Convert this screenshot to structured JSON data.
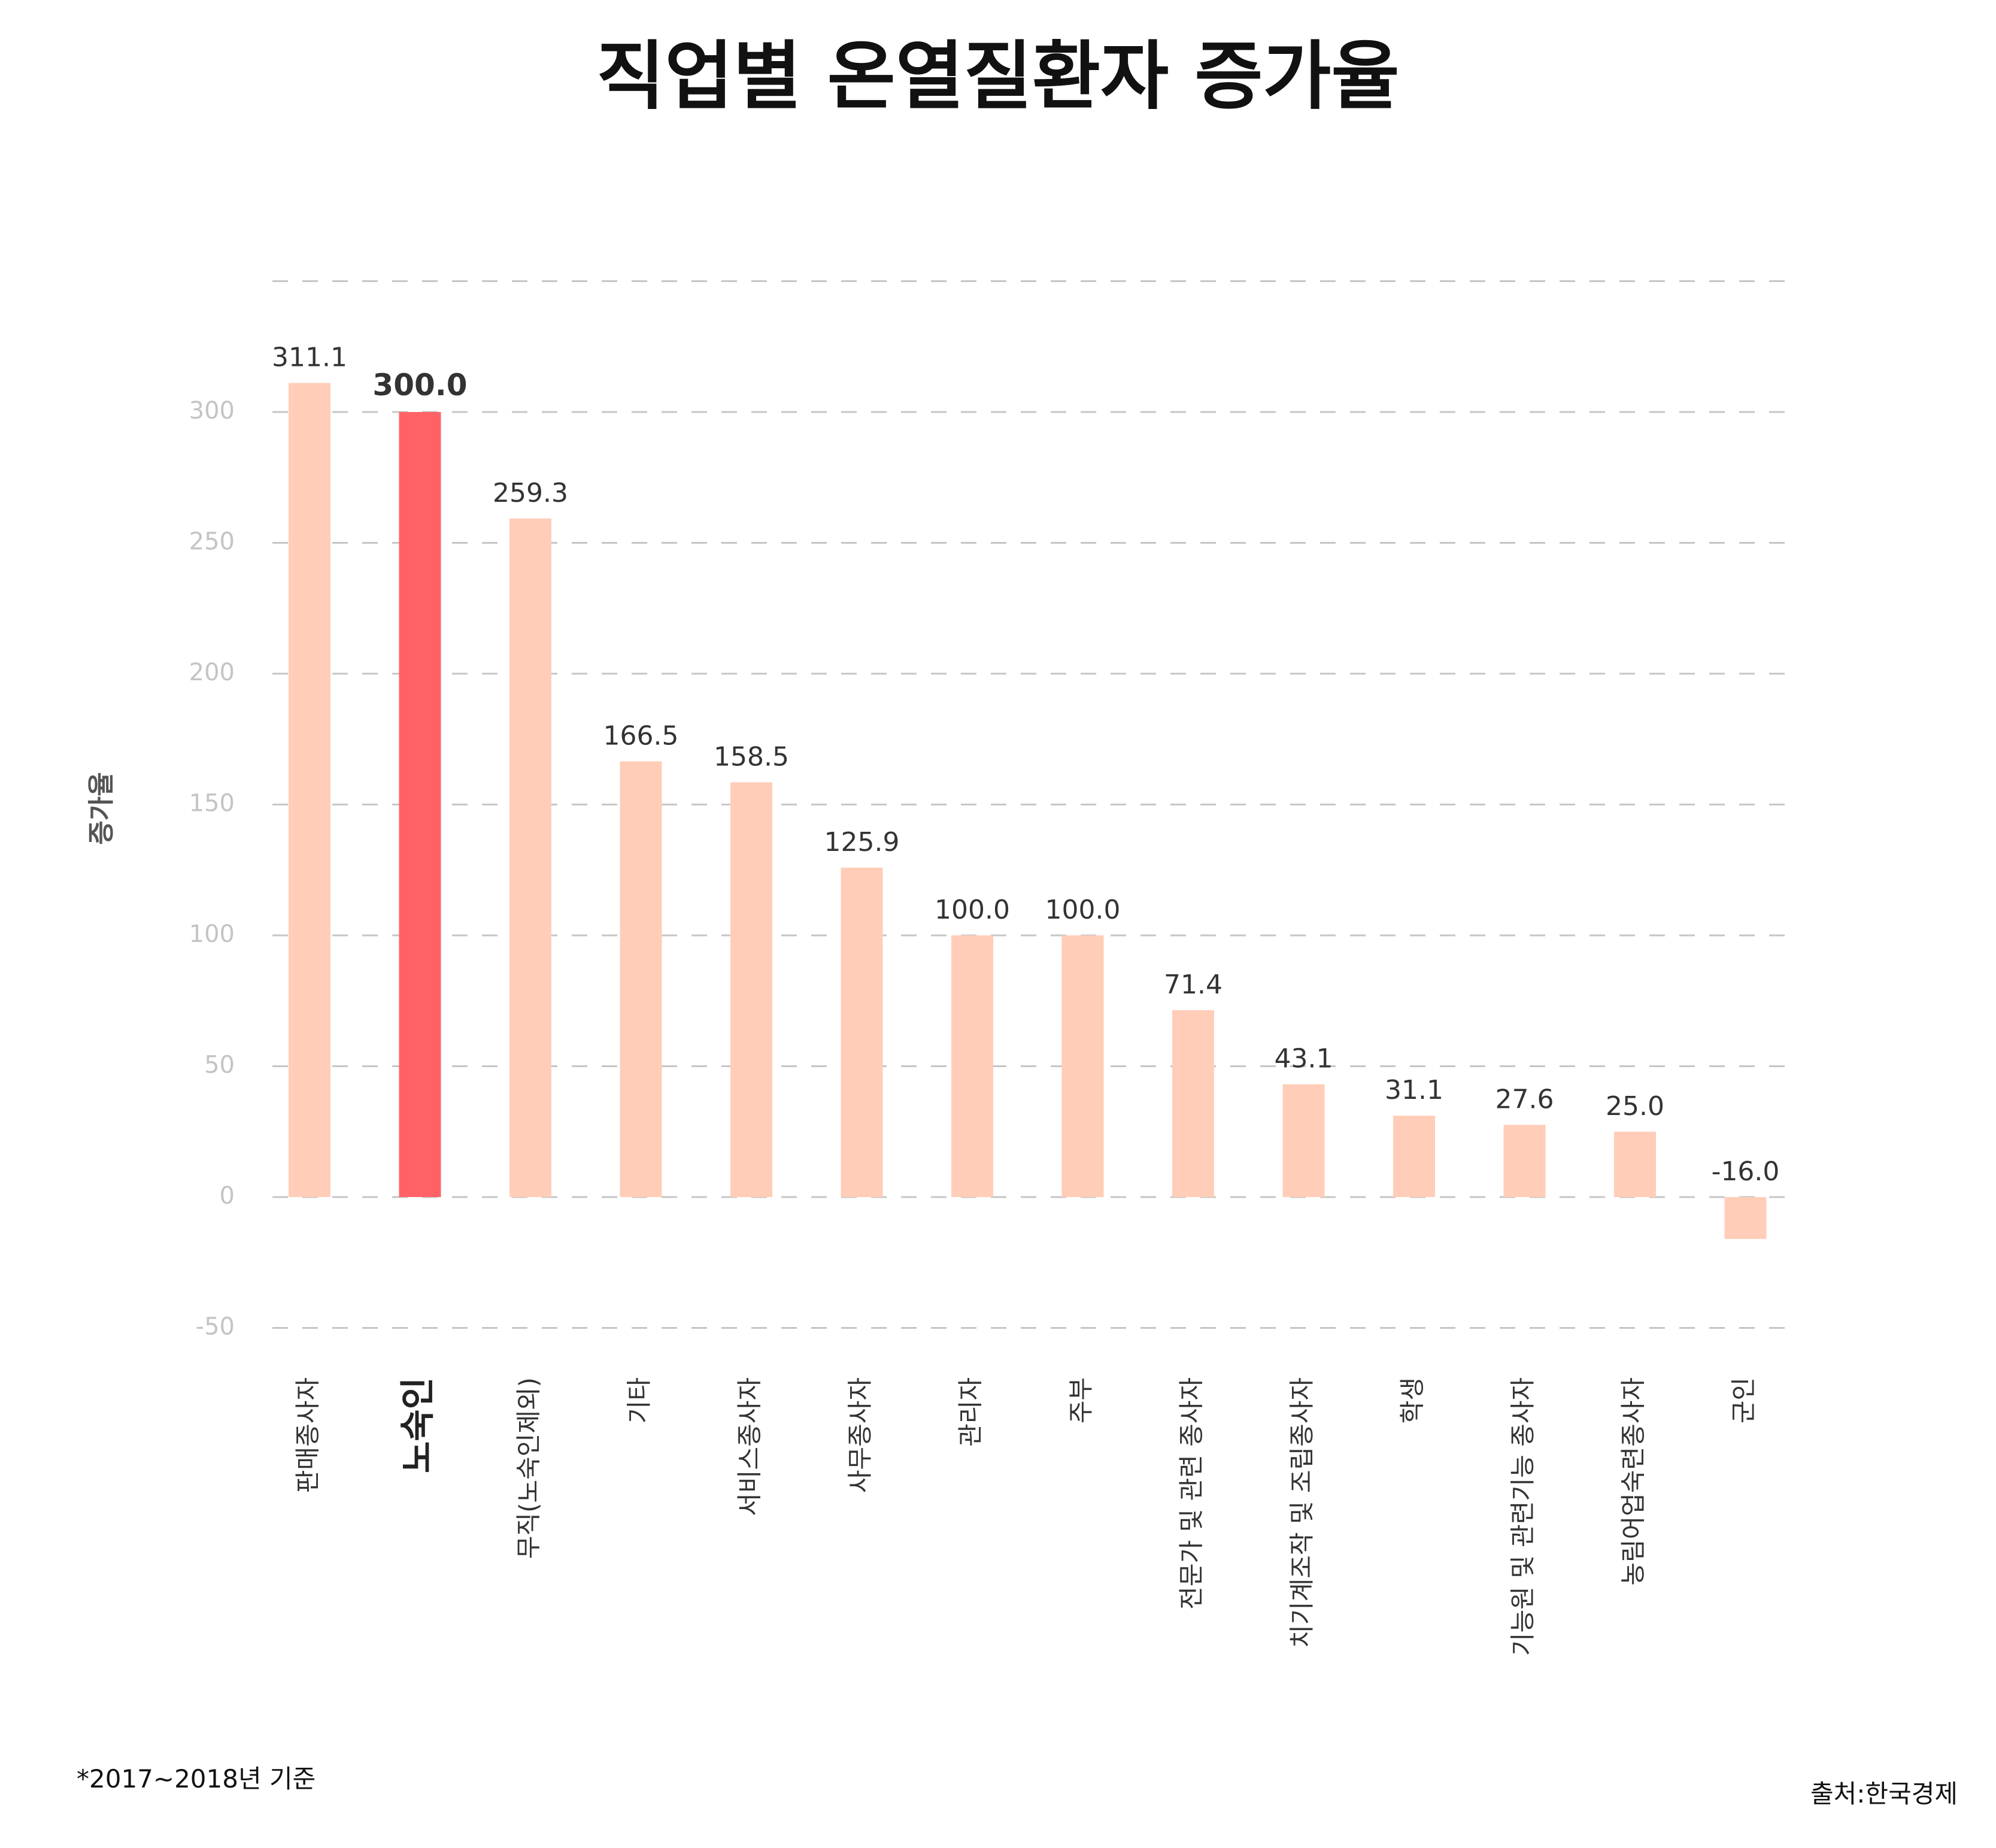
{
  "chart_data": {
    "type": "bar",
    "title": "직업별 온열질환자 증가율",
    "ylabel": "증가율",
    "ylim": [
      -55,
      350
    ],
    "yticks": [
      -50,
      0,
      50,
      100,
      150,
      200,
      250,
      300
    ],
    "grid": true,
    "categories": [
      "판매종사자",
      "노숙인",
      "무직(노숙인제외)",
      "기타",
      "서비스종사자",
      "사무종사자",
      "관리자",
      "주부",
      "전문가 및 관련 종사자",
      "치기계조작 및 조립종사자",
      "학생",
      "기능원 및 관련기능 종사자",
      "농림어업숙련종사자",
      "군인"
    ],
    "values": [
      311.1,
      300.0,
      259.3,
      166.5,
      158.5,
      125.9,
      100.0,
      100.0,
      71.4,
      43.1,
      31.1,
      27.6,
      25.0,
      -16.0
    ],
    "value_labels": [
      "311.1",
      "300.0",
      "259.3",
      "166.5",
      "158.5",
      "125.9",
      "100.0",
      "100.0",
      "71.4",
      "43.1",
      "31.1",
      "27.6",
      "25.0",
      "-16.0"
    ],
    "highlight_category": "노숙인",
    "colors": {
      "bar": "#ffcdb8",
      "highlight": "#ff6266",
      "grid": "#c6c6c6"
    }
  },
  "footnote": "*2017~2018년 기준",
  "source": "출처:한국경제"
}
